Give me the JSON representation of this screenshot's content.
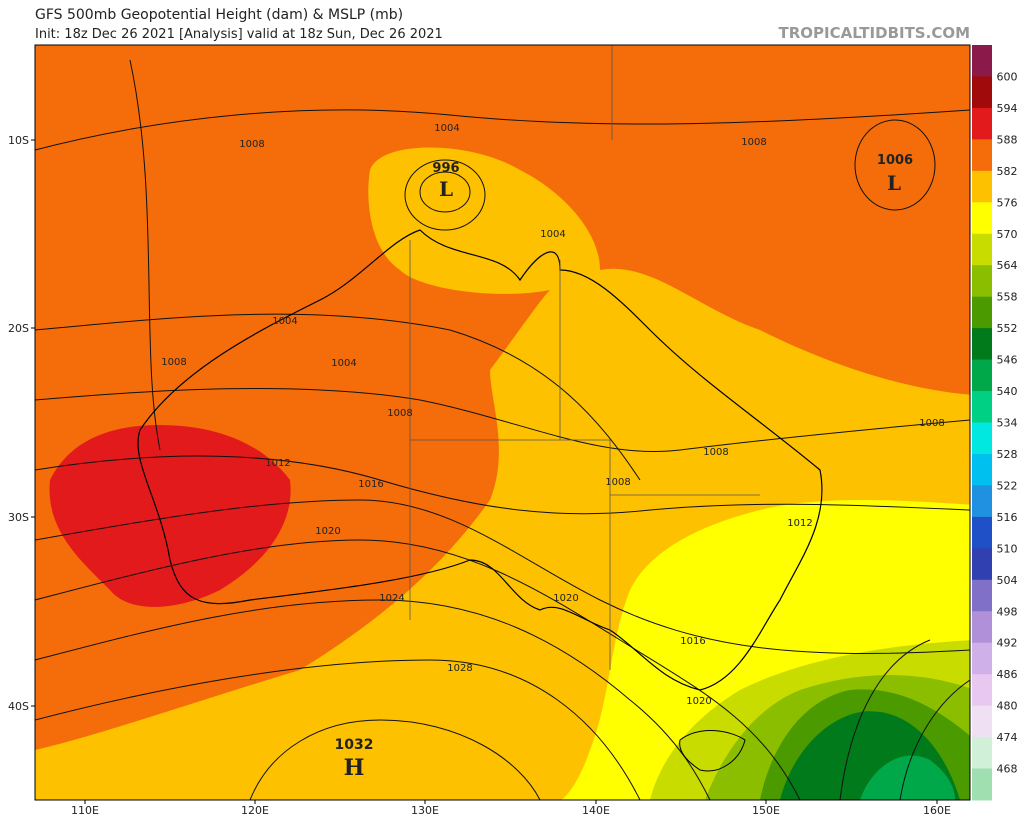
{
  "header": {
    "title": "GFS 500mb Geopotential Height (dam) & MSLP (mb)",
    "subtitle": "Init: 18z Dec 26 2021   [Analysis]   valid at 18z Sun, Dec 26 2021",
    "watermark": "TROPICALTIDBITS.COM"
  },
  "axes": {
    "lat_labels": [
      "10S",
      "20S",
      "30S",
      "40S"
    ],
    "lon_labels": [
      "110E",
      "120E",
      "130E",
      "140E",
      "150E",
      "160E"
    ]
  },
  "colorbar": {
    "labels": [
      600,
      594,
      588,
      582,
      576,
      570,
      564,
      558,
      552,
      546,
      540,
      534,
      528,
      522,
      516,
      510,
      504,
      498,
      492,
      486,
      480,
      474,
      468
    ]
  },
  "annotations": [
    "1004",
    "1008",
    "1008",
    "996",
    "1006",
    "1004",
    "1004",
    "1008",
    "1004",
    "1008",
    "1008",
    "1008",
    "1012",
    "1016",
    "1008",
    "1012",
    "1020",
    "1024",
    "1020",
    "1016",
    "1028",
    "1020",
    "1032",
    "H",
    "L",
    "L"
  ]
}
